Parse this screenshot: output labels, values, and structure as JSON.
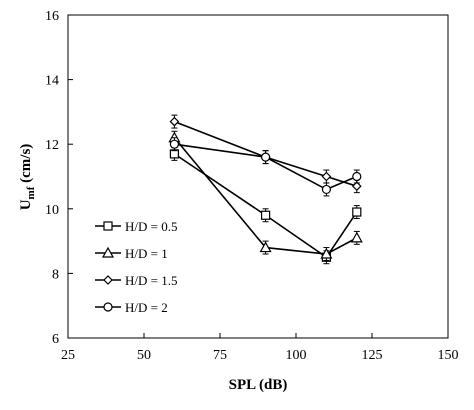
{
  "chart_data": {
    "type": "line",
    "title": "",
    "xlabel": "SPL (dB)",
    "ylabel": "U",
    "ylabel_subscript": "mf",
    "ylabel_suffix": " (cm/s)",
    "xlim": [
      25,
      150
    ],
    "ylim": [
      6,
      16
    ],
    "x_ticks": [
      "25",
      "50",
      "75",
      "100",
      "125",
      "150"
    ],
    "y_ticks": [
      "6",
      "8",
      "10",
      "12",
      "14",
      "16"
    ],
    "x_tick_values": [
      25,
      50,
      75,
      100,
      125,
      150
    ],
    "y_tick_values": [
      6,
      8,
      10,
      12,
      14,
      16
    ],
    "grid": false,
    "legend_position": "lower-left",
    "series": [
      {
        "name": "H/D = 0.5",
        "marker": "square",
        "x": [
          60,
          90,
          110,
          120
        ],
        "y": [
          11.7,
          9.8,
          8.5,
          9.9
        ],
        "err": [
          0.2,
          0.2,
          0.2,
          0.2
        ]
      },
      {
        "name": "H/D = 1",
        "marker": "triangle",
        "x": [
          60,
          90,
          110,
          120
        ],
        "y": [
          12.2,
          8.8,
          8.6,
          9.1
        ],
        "err": [
          0.2,
          0.2,
          0.2,
          0.2
        ]
      },
      {
        "name": "H/D = 1.5",
        "marker": "diamond",
        "x": [
          60,
          90,
          110,
          120
        ],
        "y": [
          12.7,
          11.6,
          11.0,
          10.7
        ],
        "err": [
          0.2,
          0.2,
          0.2,
          0.2
        ]
      },
      {
        "name": "H/D = 2",
        "marker": "circle",
        "x": [
          60,
          90,
          110,
          120
        ],
        "y": [
          12.0,
          11.6,
          10.6,
          11.0
        ],
        "err": [
          0.2,
          0.2,
          0.2,
          0.2
        ]
      }
    ]
  }
}
